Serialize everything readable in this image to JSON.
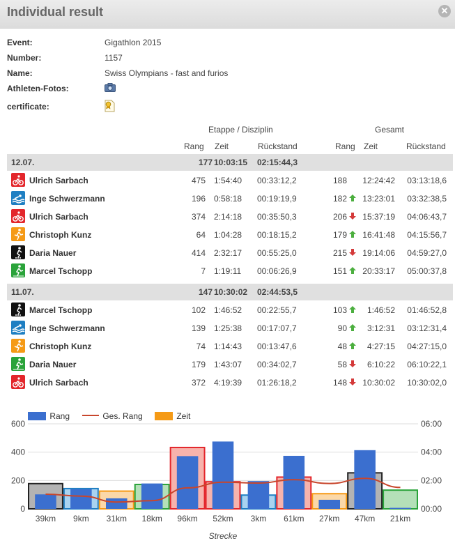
{
  "window": {
    "title": "Individual result",
    "close_icon": "close-icon"
  },
  "info": {
    "event_label": "Event:",
    "event_value": "Gigathlon 2015",
    "number_label": "Number:",
    "number_value": "1157",
    "name_label": "Name:",
    "name_value": "Swiss Olympians - fast and furios",
    "photos_label": "Athleten-Fotos:",
    "cert_label": "certificate:"
  },
  "table": {
    "etappe_header": "Etappe / Disziplin",
    "gesamt_header": "Gesamt",
    "col_rang": "Rang",
    "col_zeit": "Zeit",
    "col_rueckstand": "Rückstand",
    "col_rang2": "Rang",
    "col_zeit2": "Zeit",
    "col_rueckstand2": "Rückstand",
    "groups": [
      {
        "date": "12.07.",
        "rang": "177",
        "zeit": "10:03:15",
        "rueckstand": "02:15:44,3",
        "rows": [
          {
            "sport": "bike",
            "name": "Ulrich Sarbach",
            "rang": "475",
            "zeit": "1:54:40",
            "rueckstand": "00:33:12,2",
            "g_rang": "188",
            "trend": "",
            "g_zeit": "12:24:42",
            "g_rueckstand": "03:13:18,6"
          },
          {
            "sport": "swim",
            "name": "Inge Schwerzmann",
            "rang": "196",
            "zeit": "0:58:18",
            "rueckstand": "00:19:19,9",
            "g_rang": "182",
            "trend": "up",
            "g_zeit": "13:23:01",
            "g_rueckstand": "03:32:38,5"
          },
          {
            "sport": "bike",
            "name": "Ulrich Sarbach",
            "rang": "374",
            "zeit": "2:14:18",
            "rueckstand": "00:35:50,3",
            "g_rang": "206",
            "trend": "down",
            "g_zeit": "15:37:19",
            "g_rueckstand": "04:06:43,7"
          },
          {
            "sport": "run",
            "name": "Christoph Kunz",
            "rang": "64",
            "zeit": "1:04:28",
            "rueckstand": "00:18:15,2",
            "g_rang": "179",
            "trend": "up",
            "g_zeit": "16:41:48",
            "g_rueckstand": "04:15:56,7"
          },
          {
            "sport": "inline",
            "name": "Daria Nauer",
            "rang": "414",
            "zeit": "2:32:17",
            "rueckstand": "00:55:25,0",
            "g_rang": "215",
            "trend": "down",
            "g_zeit": "19:14:06",
            "g_rueckstand": "04:59:27,0"
          },
          {
            "sport": "mtb",
            "name": "Marcel Tschopp",
            "rang": "7",
            "zeit": "1:19:11",
            "rueckstand": "00:06:26,9",
            "g_rang": "151",
            "trend": "up",
            "g_zeit": "20:33:17",
            "g_rueckstand": "05:00:37,8"
          }
        ]
      },
      {
        "date": "11.07.",
        "rang": "147",
        "zeit": "10:30:02",
        "rueckstand": "02:44:53,5",
        "rows": [
          {
            "sport": "inline",
            "name": "Marcel Tschopp",
            "rang": "102",
            "zeit": "1:46:52",
            "rueckstand": "00:22:55,7",
            "g_rang": "103",
            "trend": "up",
            "g_zeit": "1:46:52",
            "g_rueckstand": "01:46:52,8"
          },
          {
            "sport": "swim",
            "name": "Inge Schwerzmann",
            "rang": "139",
            "zeit": "1:25:38",
            "rueckstand": "00:17:07,7",
            "g_rang": "90",
            "trend": "up",
            "g_zeit": "3:12:31",
            "g_rueckstand": "03:12:31,4"
          },
          {
            "sport": "run",
            "name": "Christoph Kunz",
            "rang": "74",
            "zeit": "1:14:43",
            "rueckstand": "00:13:47,6",
            "g_rang": "48",
            "trend": "up",
            "g_zeit": "4:27:15",
            "g_rueckstand": "04:27:15,0"
          },
          {
            "sport": "mtb",
            "name": "Daria Nauer",
            "rang": "179",
            "zeit": "1:43:07",
            "rueckstand": "00:34:02,7",
            "g_rang": "58",
            "trend": "down",
            "g_zeit": "6:10:22",
            "g_rueckstand": "06:10:22,1"
          },
          {
            "sport": "bike",
            "name": "Ulrich Sarbach",
            "rang": "372",
            "zeit": "4:19:39",
            "rueckstand": "01:26:18,2",
            "g_rang": "148",
            "trend": "down",
            "g_zeit": "10:30:02",
            "g_rueckstand": "10:30:02,0"
          }
        ]
      }
    ]
  },
  "sport_colors": {
    "bike": "#e3262b",
    "swim": "#1f7fc2",
    "run": "#f59a16",
    "inline": "#111111",
    "mtb": "#2aa33a"
  },
  "trend_colors": {
    "up": "#4caf3f",
    "down": "#d43a3a"
  },
  "chart_data": {
    "type": "bar",
    "xlabel": "Strecke",
    "categories": [
      "39km",
      "9km",
      "31km",
      "18km",
      "96km",
      "52km",
      "3km",
      "61km",
      "27km",
      "47km",
      "21km"
    ],
    "y_left_ticks": [
      "0",
      "200",
      "400",
      "600"
    ],
    "y_right_ticks": [
      "00:00",
      "02:00",
      "04:00",
      "06:00"
    ],
    "ylim_left": [
      0,
      600
    ],
    "ylim_right_hours": [
      0,
      6
    ],
    "series": [
      {
        "name": "Rang",
        "kind": "bar",
        "color": "#3b6fcf",
        "values": [
          102,
          139,
          74,
          179,
          372,
          475,
          196,
          374,
          64,
          414,
          7
        ]
      },
      {
        "name": "Ges. Rang",
        "kind": "line",
        "color": "#c8462c",
        "values": [
          103,
          90,
          48,
          58,
          148,
          188,
          182,
          206,
          179,
          215,
          151
        ]
      },
      {
        "name": "Zeit",
        "kind": "bar",
        "color": "#f59a16",
        "values_hours": [
          1.78,
          1.43,
          1.25,
          1.72,
          4.33,
          1.91,
          0.97,
          2.24,
          1.07,
          2.54,
          1.32
        ]
      }
    ],
    "zeit_bar_fills": [
      "#b3b3b3",
      "#a9d3f0",
      "#fbd8a8",
      "#b4e0b8",
      "#f7b3ac",
      "#f7b3ac",
      "#a9d3f0",
      "#f7b3ac",
      "#fbd8a8",
      "#b3b3b3",
      "#b4e0b8"
    ],
    "zeit_bar_strokes": [
      "#222222",
      "#1f7fc2",
      "#f59a16",
      "#2aa33a",
      "#e3262b",
      "#e3262b",
      "#1f7fc2",
      "#e3262b",
      "#f59a16",
      "#222222",
      "#2aa33a"
    ],
    "grid": true,
    "legend": "top-left"
  }
}
